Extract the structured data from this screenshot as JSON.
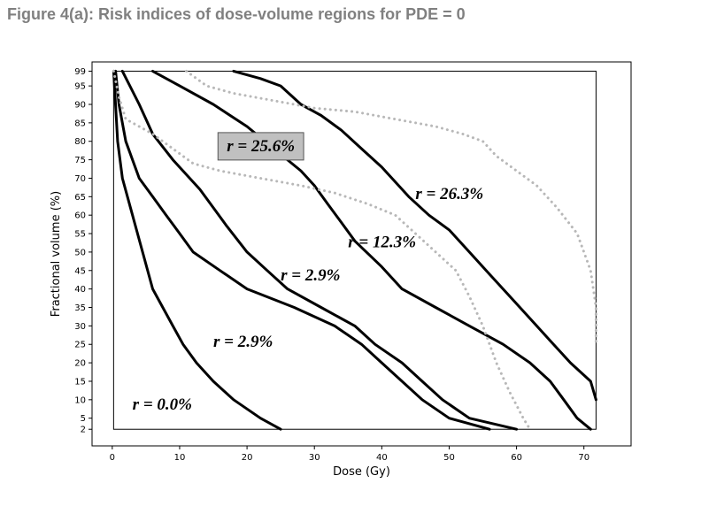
{
  "figure_title": "Figure 4(a): Risk indices of dose-volume regions for PDE = 0",
  "chart_data": {
    "type": "line",
    "title": "",
    "xlabel": "Dose (Gy)",
    "ylabel": "Fractional volume (%)",
    "xlim": [
      -3,
      77
    ],
    "ylim": [
      -2.5,
      101.5
    ],
    "plot_box": {
      "xmin": 0.2,
      "xmax": 71.8,
      "ymin": 2,
      "ymax": 99
    },
    "x_ticks": [
      0,
      10,
      20,
      30,
      40,
      50,
      60,
      70
    ],
    "y_ticks": [
      2,
      5,
      10,
      15,
      20,
      25,
      30,
      35,
      40,
      45,
      50,
      55,
      60,
      65,
      70,
      75,
      80,
      85,
      90,
      95,
      99
    ],
    "grid": false,
    "series": [
      {
        "style": "solid",
        "color": "#000000",
        "points": [
          [
            0.2,
            99
          ],
          [
            0.8,
            80
          ],
          [
            1.5,
            70
          ],
          [
            3,
            60
          ],
          [
            4.5,
            50
          ],
          [
            6,
            40
          ],
          [
            7.5,
            35
          ],
          [
            9,
            30
          ],
          [
            10.5,
            25
          ],
          [
            12.5,
            20
          ],
          [
            15,
            15
          ],
          [
            18,
            10
          ],
          [
            22,
            5
          ],
          [
            25,
            2
          ]
        ]
      },
      {
        "style": "solid",
        "color": "#000000",
        "points": [
          [
            0.5,
            99
          ],
          [
            1,
            90
          ],
          [
            2,
            80
          ],
          [
            4,
            70
          ],
          [
            6,
            65
          ],
          [
            8,
            60
          ],
          [
            10,
            55
          ],
          [
            12,
            50
          ],
          [
            16,
            45
          ],
          [
            20,
            40
          ],
          [
            27,
            35
          ],
          [
            33,
            30
          ],
          [
            37,
            25
          ],
          [
            40,
            20
          ],
          [
            43,
            15
          ],
          [
            46,
            10
          ],
          [
            50,
            5
          ],
          [
            56,
            2
          ]
        ]
      },
      {
        "style": "solid",
        "color": "#000000",
        "points": [
          [
            1.5,
            99
          ],
          [
            4,
            90
          ],
          [
            6,
            82
          ],
          [
            9,
            75
          ],
          [
            13,
            67
          ],
          [
            15,
            62
          ],
          [
            17,
            57
          ],
          [
            20,
            50
          ],
          [
            23,
            45
          ],
          [
            26,
            40
          ],
          [
            31,
            35
          ],
          [
            36,
            30
          ],
          [
            39,
            25
          ],
          [
            43,
            20
          ],
          [
            46,
            15
          ],
          [
            49,
            10
          ],
          [
            53,
            5
          ],
          [
            60,
            2
          ]
        ]
      },
      {
        "style": "solid",
        "color": "#000000",
        "points": [
          [
            6,
            99
          ],
          [
            10,
            95
          ],
          [
            15,
            90
          ],
          [
            20,
            84
          ],
          [
            24,
            78
          ],
          [
            28,
            72
          ],
          [
            30,
            68
          ],
          [
            32,
            63
          ],
          [
            34,
            58
          ],
          [
            36,
            53
          ],
          [
            40,
            46
          ],
          [
            43,
            40
          ],
          [
            48,
            35
          ],
          [
            53,
            30
          ],
          [
            58,
            25
          ],
          [
            62,
            20
          ],
          [
            65,
            15
          ],
          [
            67,
            10
          ],
          [
            69,
            5
          ],
          [
            71,
            2
          ]
        ]
      },
      {
        "style": "solid",
        "color": "#000000",
        "points": [
          [
            18,
            99
          ],
          [
            22,
            97
          ],
          [
            25,
            95
          ],
          [
            28,
            90
          ],
          [
            31,
            87
          ],
          [
            34,
            83
          ],
          [
            37,
            78
          ],
          [
            40,
            73
          ],
          [
            44,
            65
          ],
          [
            47,
            60
          ],
          [
            50,
            56
          ],
          [
            53,
            50
          ],
          [
            56,
            44
          ],
          [
            59,
            38
          ],
          [
            62,
            32
          ],
          [
            65,
            26
          ],
          [
            68,
            20
          ],
          [
            71,
            15
          ],
          [
            71.8,
            10
          ]
        ]
      },
      {
        "style": "dotted",
        "color": "#b8b8b8",
        "points": [
          [
            0.2,
            99
          ],
          [
            1,
            92
          ],
          [
            2,
            86
          ],
          [
            4,
            84
          ],
          [
            6,
            82
          ],
          [
            9,
            78
          ],
          [
            12,
            74
          ],
          [
            16,
            72
          ],
          [
            22,
            70
          ],
          [
            28,
            68
          ],
          [
            33,
            66
          ],
          [
            38,
            63
          ],
          [
            42,
            60
          ],
          [
            45,
            55
          ],
          [
            48,
            50
          ],
          [
            51,
            45
          ],
          [
            53,
            38
          ],
          [
            55,
            30
          ],
          [
            57,
            20
          ],
          [
            59,
            12
          ],
          [
            61,
            5
          ],
          [
            62,
            2
          ]
        ]
      },
      {
        "style": "dotted",
        "color": "#b8b8b8",
        "points": [
          [
            11,
            99
          ],
          [
            14,
            95
          ],
          [
            18,
            93
          ],
          [
            24,
            91
          ],
          [
            30,
            89
          ],
          [
            36,
            88
          ],
          [
            42,
            86
          ],
          [
            48,
            84
          ],
          [
            52,
            82
          ],
          [
            55,
            80
          ],
          [
            57,
            76
          ],
          [
            60,
            72
          ],
          [
            63,
            68
          ],
          [
            66,
            62
          ],
          [
            69,
            55
          ],
          [
            71,
            45
          ],
          [
            71.8,
            35
          ],
          [
            71.8,
            25
          ]
        ]
      }
    ],
    "annotations": [
      {
        "text": "r = 0.0%",
        "x": 3,
        "y": 9
      },
      {
        "text": "r = 2.9%",
        "x": 15,
        "y": 26
      },
      {
        "text": "r = 2.9%",
        "x": 25,
        "y": 44
      },
      {
        "text": "r = 12.3%",
        "x": 35,
        "y": 53
      },
      {
        "text": "r = 26.3%",
        "x": 45,
        "y": 66
      },
      {
        "text": "r = 25.6%",
        "x": 17,
        "y": 79,
        "boxed": true,
        "box_color": "#c0c0c0"
      }
    ]
  }
}
